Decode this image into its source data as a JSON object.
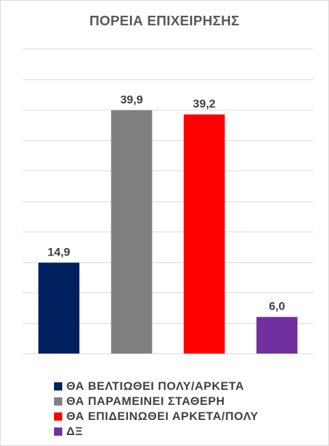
{
  "chart_data": {
    "type": "bar",
    "title": "ΠΟΡΕΙΑ ΕΠΙΧΕΙΡΗΣΗΣ",
    "categories": [
      "ΘΑ ΒΕΛΤΙΩΘΕΙ ΠΟΛΥ/ΑΡΚΕΤΑ",
      "ΘΑ ΠΑΡΑΜΕΙΝΕΙ ΣΤΑΘΕΡΗ",
      "ΘΑ ΕΠΙΔΕΙΝΩΘΕΙ ΑΡΚΕΤΑ/ΠΟΛΥ",
      "ΔΞ"
    ],
    "values": [
      14.9,
      39.9,
      39.2,
      6.0
    ],
    "value_labels": [
      "14,9",
      "39,9",
      "39,2",
      "6,0"
    ],
    "colors": [
      "#002060",
      "#808080",
      "#ff0000",
      "#7030a0"
    ],
    "ylim": [
      0,
      50
    ],
    "y_gridline_step": 5,
    "grid": true,
    "legend_position": "bottom",
    "xlabel": "",
    "ylabel": ""
  }
}
